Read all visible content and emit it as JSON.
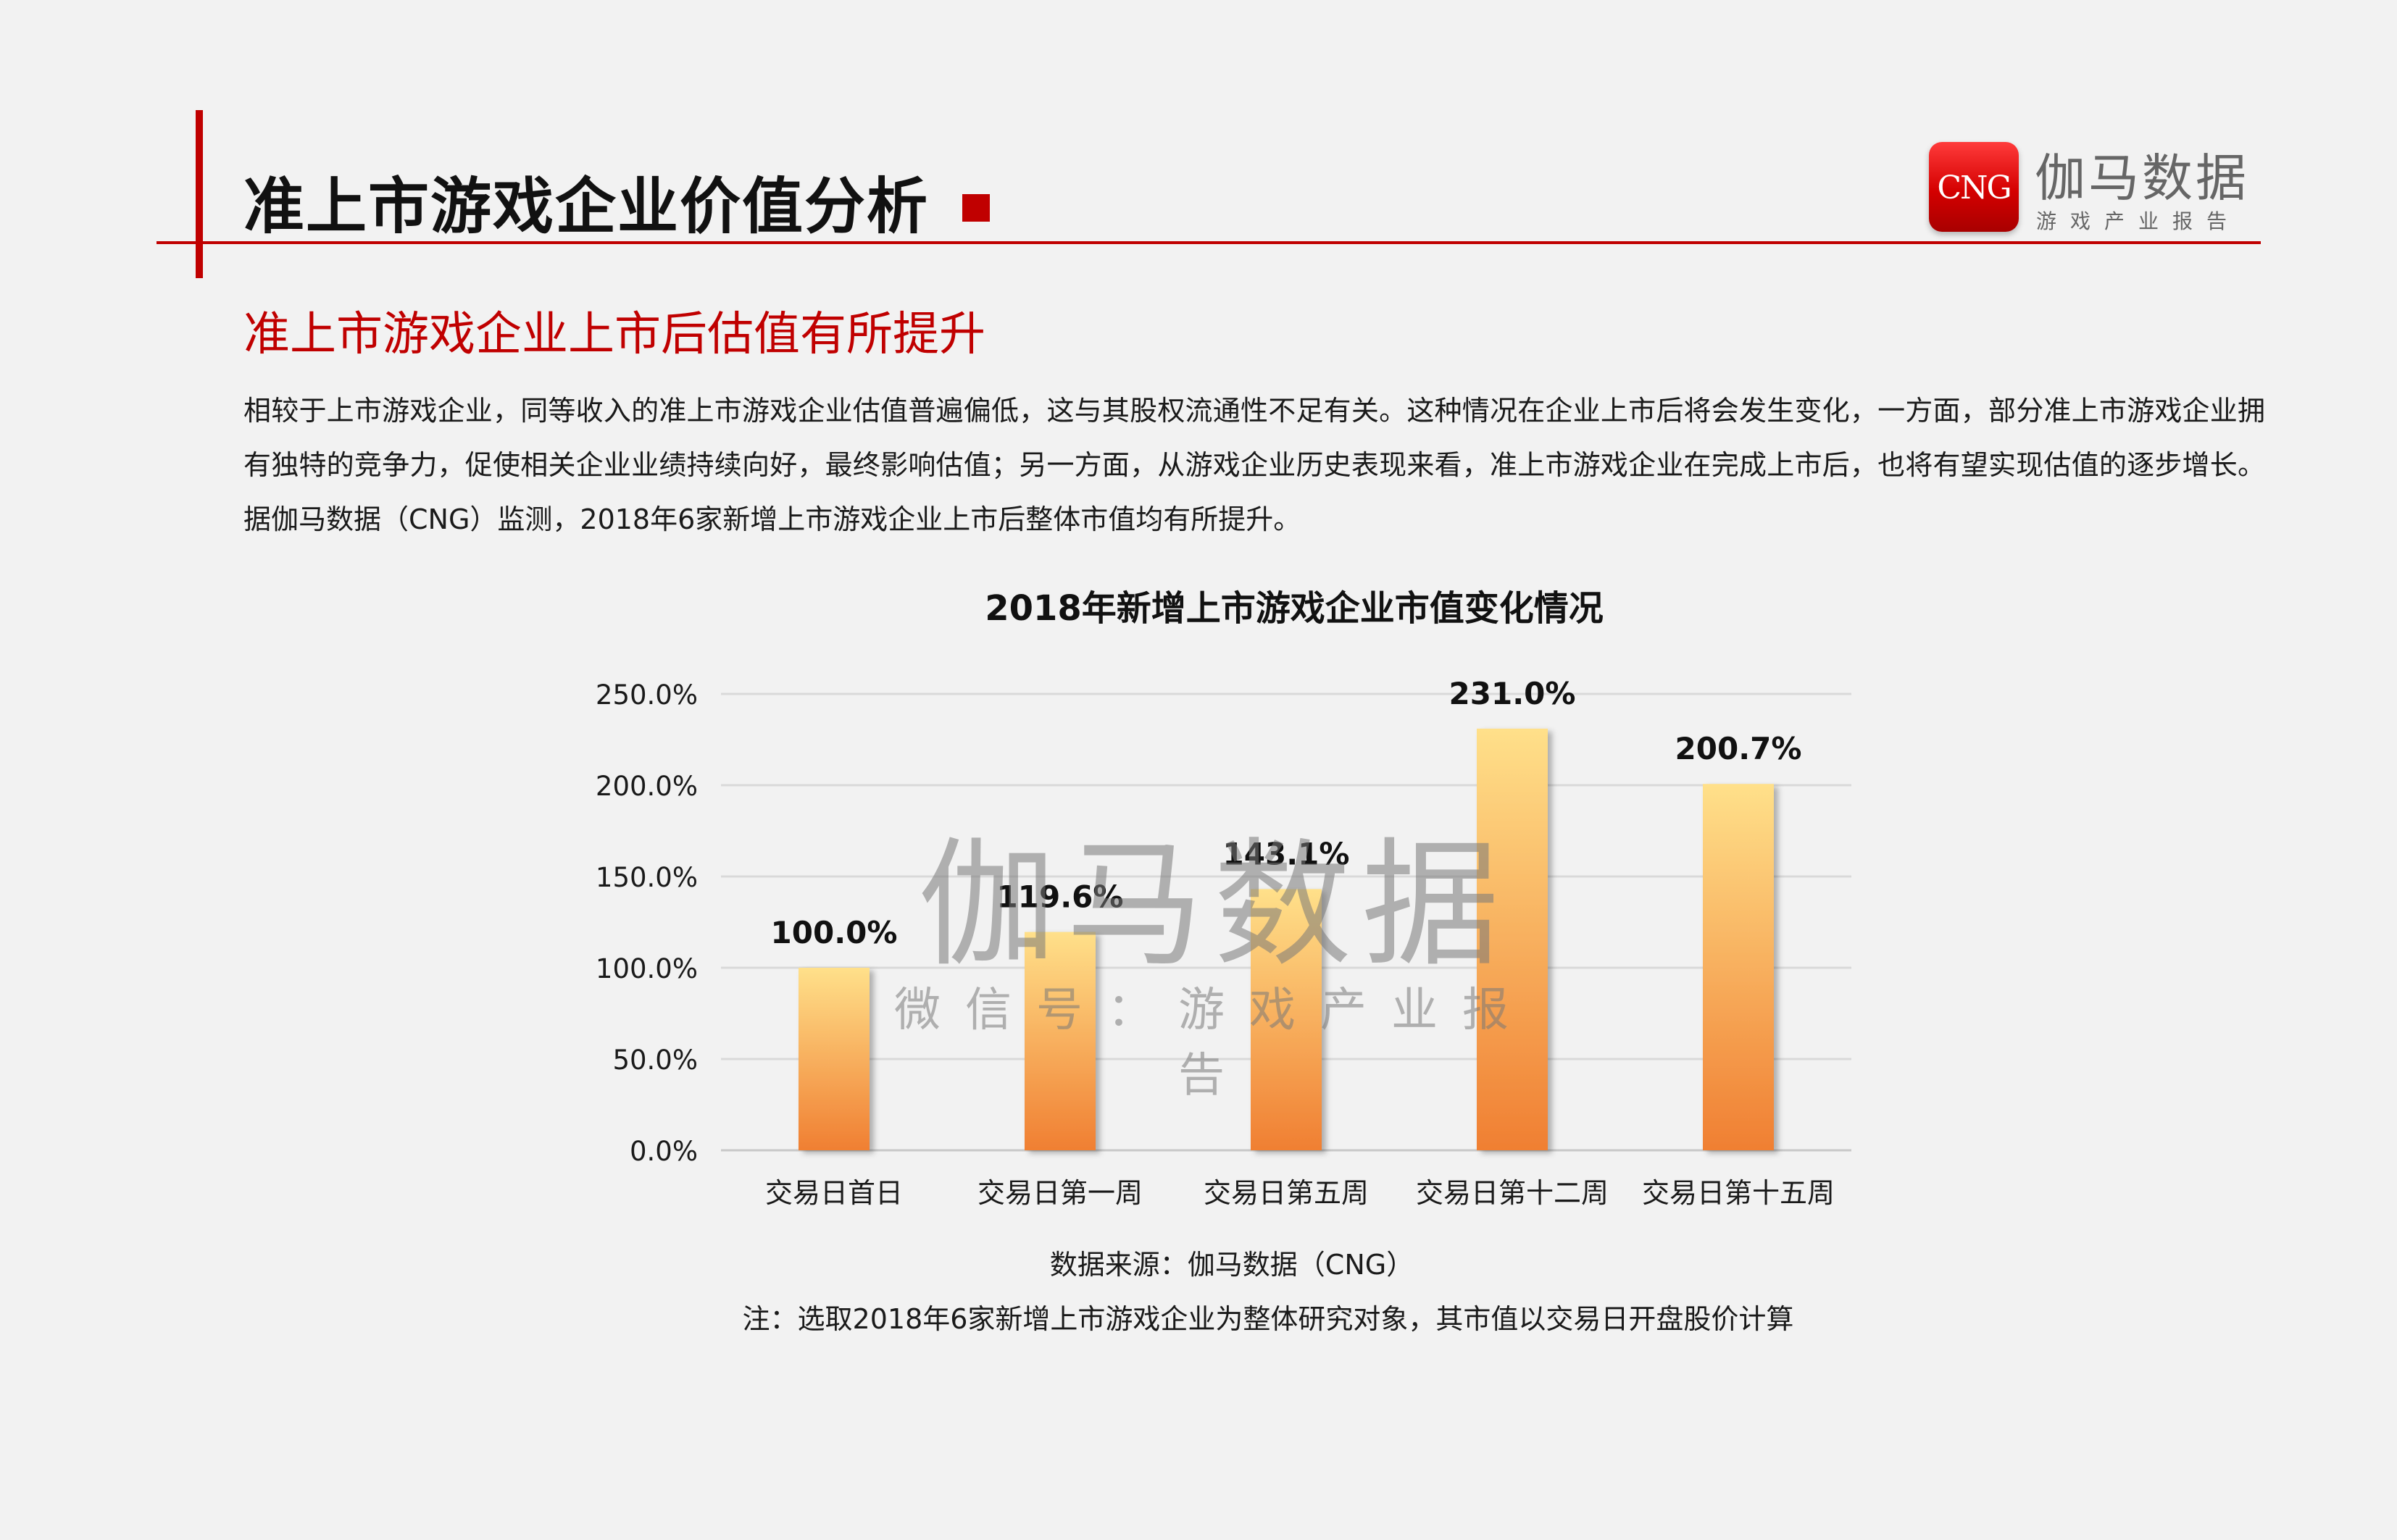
{
  "header": {
    "title": "准上市游戏企业价值分析",
    "logo_abbr": "CNG",
    "logo_name": "伽马数据",
    "logo_sub": "游戏产业报告"
  },
  "section": {
    "title": "准上市游戏企业上市后估值有所提升",
    "paragraph": "相较于上市游戏企业，同等收入的准上市游戏企业估值普遍偏低，这与其股权流通性不足有关。这种情况在企业上市后将会发生变化，一方面，部分准上市游戏企业拥有独特的竞争力，促使相关企业业绩持续向好，最终影响估值；另一方面，从游戏企业历史表现来看，准上市游戏企业在完成上市后，也将有望实现估值的逐步增长。据伽马数据（CNG）监测，2018年6家新增上市游戏企业上市后整体市值均有所提升。"
  },
  "watermark": {
    "main": "伽马数据",
    "sub": "微信号：游戏产业报告"
  },
  "colors": {
    "accent": "#c00000",
    "bar_top": "#ffe08a",
    "bar_bottom": "#f07f32"
  },
  "chart_data": {
    "type": "bar",
    "title": "2018年新增上市游戏企业市值变化情况",
    "categories": [
      "交易日首日",
      "交易日第一周",
      "交易日第五周",
      "交易日第十二周",
      "交易日第十五周"
    ],
    "values": [
      100.0,
      119.6,
      143.1,
      231.0,
      200.7
    ],
    "value_labels": [
      "100.0%",
      "119.6%",
      "143.1%",
      "231.0%",
      "200.7%"
    ],
    "ylim": [
      0,
      250
    ],
    "yticks": [
      0,
      50,
      100,
      150,
      200,
      250
    ],
    "ytick_labels": [
      "0.0%",
      "50.0%",
      "100.0%",
      "150.0%",
      "200.0%",
      "250.0%"
    ],
    "grid": true,
    "xlabel": "",
    "ylabel": ""
  },
  "footer": {
    "source": "数据来源：伽马数据（CNG）",
    "note": "注：选取2018年6家新增上市游戏企业为整体研究对象，其市值以交易日开盘股价计算"
  }
}
